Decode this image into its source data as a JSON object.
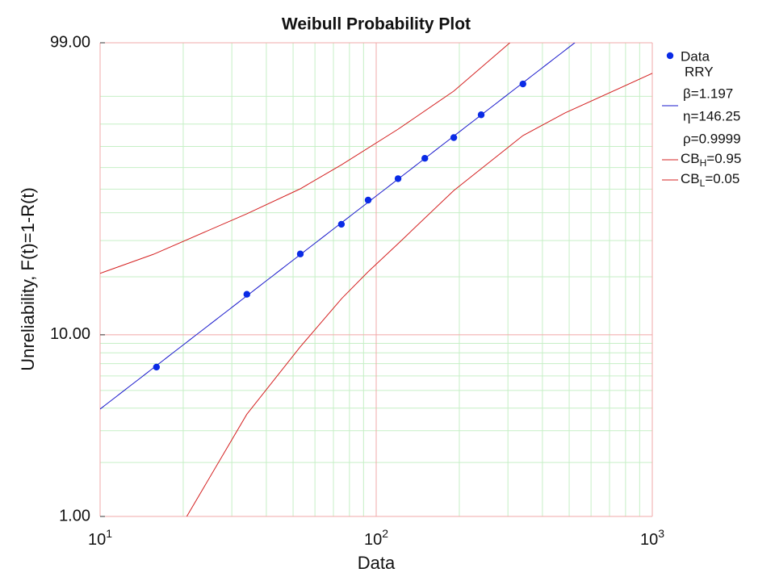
{
  "chart_data": {
    "type": "probability",
    "title": "Weibull Probability Plot",
    "xlabel": "Data",
    "ylabel": "Unreliability, F(t)=1-R(t)",
    "xscale": "log",
    "yscale": "weibull",
    "xlim": [
      10,
      1000
    ],
    "ylim": [
      1,
      99
    ],
    "xticks": [
      {
        "value": 10,
        "label": {
          "base": "10",
          "exponent": "1"
        }
      },
      {
        "value": 100,
        "label": {
          "base": "10",
          "exponent": "2"
        }
      },
      {
        "value": 1000,
        "label": {
          "base": "10",
          "exponent": "3"
        }
      }
    ],
    "yticks": [
      {
        "value": 1,
        "label": "1.00"
      },
      {
        "value": 10,
        "label": "10.00"
      },
      {
        "value": 99,
        "label": "99.00"
      }
    ],
    "grid": true,
    "xgrid_minor": [
      20,
      30,
      40,
      50,
      60,
      70,
      80,
      90,
      200,
      300,
      400,
      500,
      600,
      700,
      800,
      900
    ],
    "ygrid_minor": [
      2,
      3,
      4,
      5,
      6,
      7,
      8,
      9,
      20,
      30,
      40,
      50,
      60,
      70,
      80,
      90
    ],
    "series": [
      {
        "name": "Data",
        "color": "#0a2be6",
        "x": [
          16.0,
          34.0,
          53.1,
          74.8,
          93.5,
          120,
          150,
          191,
          240,
          340
        ],
        "values": [
          6.7,
          16.3,
          25.9,
          35.6,
          45.2,
          54.8,
          64.4,
          74.1,
          83.7,
          93.3
        ]
      }
    ],
    "fit": {
      "method": "RRY",
      "color": "#1a1acc",
      "params": [
        {
          "value": 1.197,
          "label": "β=1.197"
        },
        {
          "value": 146.25,
          "label": "η=146.25"
        },
        {
          "value": 0.9999,
          "label": "ρ=0.9999"
        }
      ]
    },
    "bounds": [
      {
        "name": [
          "CB",
          "H",
          "=0.95"
        ],
        "color": "#d42020",
        "x": [
          10,
          15.6,
          34,
          53,
          75,
          120,
          191,
          305
        ],
        "values": [
          20.8,
          25.8,
          39.6,
          50.1,
          61.4,
          77.8,
          91.5,
          99
        ]
      },
      {
        "name": [
          "CB",
          "L",
          "=0.05"
        ],
        "color": "#d42020",
        "x": [
          20.6,
          34,
          53,
          75,
          93.5,
          120,
          191,
          340,
          483,
          1000
        ],
        "values": [
          1,
          3.7,
          8.6,
          15.5,
          21.2,
          29.0,
          49.4,
          75.0,
          84.4,
          95.5
        ]
      }
    ]
  }
}
